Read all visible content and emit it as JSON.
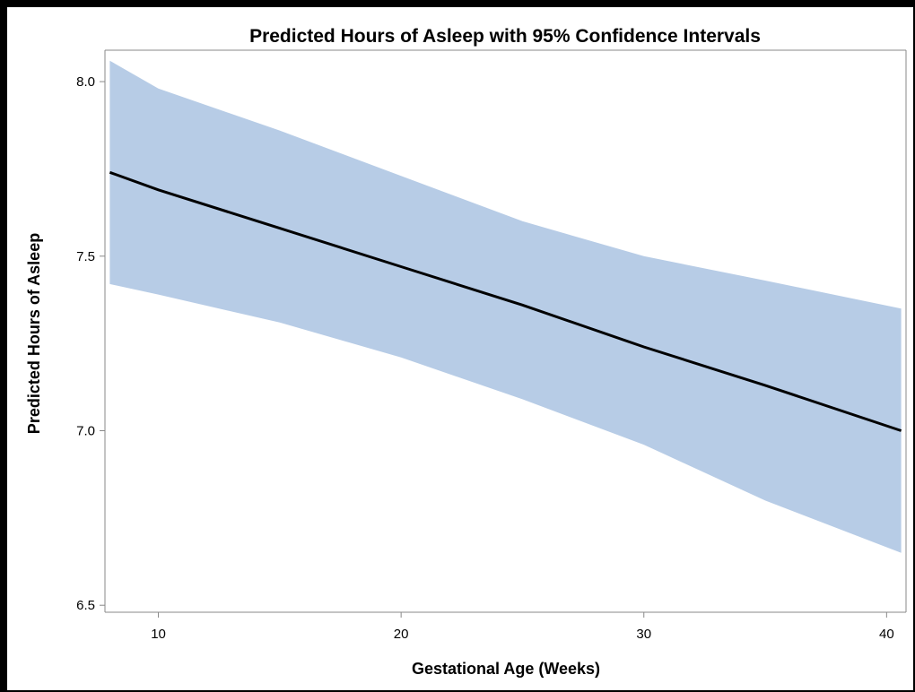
{
  "chart_data": {
    "type": "area",
    "title": "Predicted Hours of Asleep with 95% Confidence Intervals",
    "xlabel": "Gestational Age (Weeks)",
    "ylabel": "Predicted Hours of Asleep",
    "xlim": [
      7.8,
      40.8
    ],
    "ylim": [
      6.48,
      8.09
    ],
    "x_ticks": [
      10,
      20,
      30,
      40
    ],
    "y_ticks": [
      6.5,
      7.0,
      7.5,
      8.0
    ],
    "x_tick_labels": [
      "10",
      "20",
      "30",
      "40"
    ],
    "y_tick_labels": [
      "6.5",
      "7.0",
      "7.5",
      "8.0"
    ],
    "grid": false,
    "legend": "none",
    "colors": {
      "band": "#b7cce6",
      "line": "#000000",
      "axis": "#888888"
    },
    "x": [
      8,
      10,
      15,
      20,
      25,
      30,
      35,
      40.6
    ],
    "series": [
      {
        "role": "prediction",
        "values": [
          7.74,
          7.69,
          7.58,
          7.47,
          7.36,
          7.24,
          7.13,
          7.0
        ]
      },
      {
        "role": "upper",
        "values": [
          8.06,
          7.98,
          7.86,
          7.73,
          7.6,
          7.5,
          7.43,
          7.35
        ]
      },
      {
        "role": "lower",
        "values": [
          7.42,
          7.39,
          7.31,
          7.21,
          7.09,
          6.96,
          6.8,
          6.65
        ]
      }
    ]
  }
}
